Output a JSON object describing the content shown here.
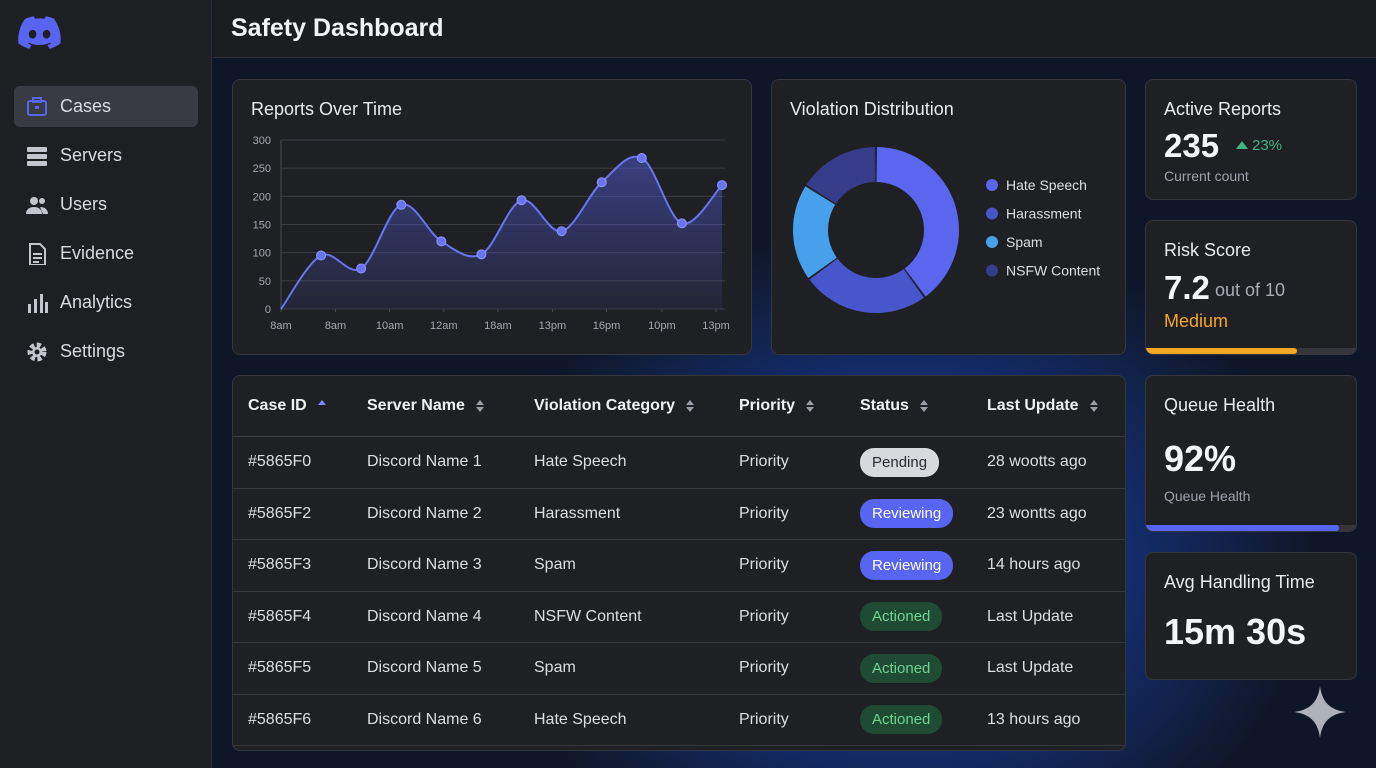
{
  "sidebar": {
    "nav": [
      "Cases",
      "Servers",
      "Users",
      "Evidence",
      "Analytics",
      "Settings"
    ]
  },
  "header": {
    "title": "Safety Dashboard"
  },
  "reports_chart": {
    "type": "line",
    "title": "Reports Over Time",
    "x": [
      0,
      1,
      2,
      3,
      4,
      5,
      6,
      7,
      8,
      9,
      10,
      11
    ],
    "values": [
      0,
      95,
      72,
      185,
      120,
      97,
      193,
      138,
      225,
      268,
      152,
      220
    ],
    "color": "#6a74f0",
    "xlim": [
      0,
      11
    ],
    "xticks": [
      {
        "value": 0,
        "label": "8am"
      },
      {
        "value": 1.36,
        "label": "8am"
      },
      {
        "value": 2.71,
        "label": "10am"
      },
      {
        "value": 4.06,
        "label": "12am"
      },
      {
        "value": 5.41,
        "label": "18am"
      },
      {
        "value": 6.77,
        "label": "13pm"
      },
      {
        "value": 8.12,
        "label": "16pm"
      },
      {
        "value": 9.5,
        "label": "10pm"
      },
      {
        "value": 10.85,
        "label": "13pm"
      }
    ],
    "ylim": [
      0,
      300
    ],
    "yticks": [
      0,
      50,
      100,
      150,
      200,
      250,
      300
    ],
    "grid": true
  },
  "violation_chart": {
    "type": "donut",
    "title": "Violation Distribution",
    "categories": [
      "Hate Speech",
      "Harassment",
      "Spam",
      "NSFW Content"
    ],
    "values": [
      40,
      25,
      19,
      16
    ],
    "colors": [
      "#5a66ee",
      "#4856cc",
      "#47a0ec",
      "#363c8a"
    ]
  },
  "cards": {
    "active_reports": {
      "title": "Active Reports",
      "value": 235,
      "change": "23%",
      "caption": "Current count"
    },
    "risk_score": {
      "title": "Risk Score",
      "value": 7.2,
      "max": 10,
      "max_label": "out of 10",
      "level": "Medium",
      "color": "#f5a623"
    },
    "queue_health": {
      "title": "Queue Health",
      "value": 92,
      "value_label": "92%",
      "caption": "Queue Health",
      "color": "#5865f2"
    },
    "avg_handling": {
      "title": "Avg Handling Time",
      "value": "15m 30s"
    }
  },
  "table": {
    "columns": [
      "Case ID",
      "Server Name",
      "Violation Category",
      "Priority",
      "Status",
      "Last Update"
    ],
    "rows": [
      [
        "#5865F0",
        "Discord Name 1",
        "Hate Speech",
        "Priority",
        {
          "label": "Pending",
          "bg": "#d7d9dd",
          "fg": "#2a2c31"
        },
        "28 wootts ago"
      ],
      [
        "#5865F2",
        "Discord Name 2",
        "Harassment",
        "Priority",
        {
          "label": "Reviewing",
          "bg": "#5865f2",
          "fg": "#ffffff"
        },
        "23 wontts ago"
      ],
      [
        "#5865F3",
        "Discord Name 3",
        "Spam",
        "Priority",
        {
          "label": "Reviewing",
          "bg": "#5865f2",
          "fg": "#ffffff"
        },
        "14 hours ago"
      ],
      [
        "#5865F4",
        "Discord Name 4",
        "NSFW Content",
        "Priority",
        {
          "label": "Actioned",
          "bg": "#1f4a33",
          "fg": "#6fd391"
        },
        "Last Update"
      ],
      [
        "#5865F5",
        "Discord Name 5",
        "Spam",
        "Priority",
        {
          "label": "Actioned",
          "bg": "#1f4a33",
          "fg": "#6fd391"
        },
        "Last Update"
      ],
      [
        "#5865F6",
        "Discord Name 6",
        "Hate Speech",
        "Priority",
        {
          "label": "Actioned",
          "bg": "#1f4a33",
          "fg": "#6fd391"
        },
        "13 hours ago"
      ]
    ]
  }
}
